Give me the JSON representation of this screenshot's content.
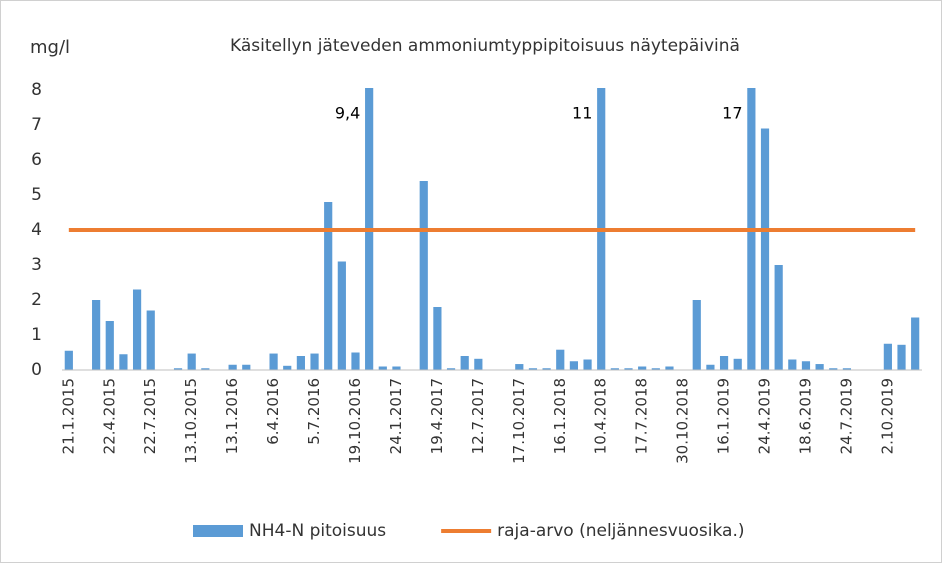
{
  "chart_data": {
    "type": "bar",
    "title": "Käsitellyn jäteveden ammoniumtyppipitoisuus näytepäivinä",
    "y_label": "mg/l",
    "categories": [
      "21.1.2015",
      null,
      null,
      "22.4.2015",
      null,
      null,
      "22.7.2015",
      null,
      null,
      "13.10.2015",
      null,
      null,
      "13.1.2016",
      null,
      null,
      "6.4.2016",
      null,
      null,
      "5.7.2016",
      null,
      null,
      "19.10.2016",
      null,
      null,
      "24.1.2017",
      null,
      null,
      "19.4.2017",
      null,
      null,
      "12.7.2017",
      null,
      null,
      "17.10.2017",
      null,
      null,
      "16.1.2018",
      null,
      null,
      "10.4.2018",
      null,
      null,
      "17.7.2018",
      null,
      null,
      "30.10.2018",
      null,
      null,
      "16.1.2019",
      null,
      null,
      "24.4.2019",
      null,
      null,
      "18.6.2019",
      null,
      null,
      "24.7.2019",
      null,
      null,
      "2.10.2019",
      null,
      null
    ],
    "series": [
      {
        "name": "NH4-N pitoisuus",
        "color": "#5b9bd5",
        "type": "bar",
        "values": [
          0.55,
          0,
          2.0,
          1.4,
          0.45,
          2.3,
          1.7,
          0,
          0.05,
          0.47,
          0.05,
          0,
          0.15,
          0.15,
          0,
          0.47,
          0.12,
          0.4,
          0.47,
          4.8,
          3.1,
          0.5,
          9.4,
          0.1,
          0.1,
          0,
          5.4,
          1.8,
          0.05,
          0.4,
          0.32,
          0,
          0,
          0.17,
          0.05,
          0.05,
          0.58,
          0.25,
          0.3,
          11,
          0.05,
          0.05,
          0.1,
          0.05,
          0.1,
          0,
          2.0,
          0.15,
          0.4,
          0.32,
          17,
          6.9,
          3.0,
          0.3,
          0.25,
          0.17,
          0.05,
          0.05,
          0,
          0,
          0.75,
          0.72,
          1.5
        ],
        "value_labels": [
          null,
          null,
          null,
          null,
          null,
          null,
          null,
          null,
          null,
          null,
          null,
          null,
          null,
          null,
          null,
          null,
          null,
          null,
          null,
          null,
          null,
          null,
          "9,4",
          null,
          null,
          null,
          null,
          null,
          null,
          null,
          null,
          null,
          null,
          null,
          null,
          null,
          null,
          null,
          null,
          "11",
          null,
          null,
          null,
          null,
          null,
          null,
          null,
          null,
          null,
          null,
          "17",
          null,
          null,
          null,
          null,
          null,
          null,
          null,
          null,
          null,
          null,
          null,
          null
        ]
      },
      {
        "name": "raja-arvo (neljännesvuosika.)",
        "color": "#ed7d31",
        "type": "line",
        "values": [
          4,
          4,
          4,
          4,
          4,
          4,
          4,
          4,
          4,
          4,
          4,
          4,
          4,
          4,
          4,
          4,
          4,
          4,
          4,
          4,
          4,
          4,
          4,
          4,
          4,
          4,
          4,
          4,
          4,
          4,
          4,
          4,
          4,
          4,
          4,
          4,
          4,
          4,
          4,
          4,
          4,
          4,
          4,
          4,
          4,
          4,
          4,
          4,
          4,
          4,
          4,
          4,
          4,
          4,
          4,
          4,
          4,
          4,
          4,
          4,
          4,
          4,
          4
        ]
      }
    ],
    "ylim": [
      0,
      8
    ],
    "yticks": [
      0,
      1,
      2,
      3,
      4,
      5,
      6,
      7,
      8
    ],
    "grid": false,
    "legend": "bottom"
  }
}
